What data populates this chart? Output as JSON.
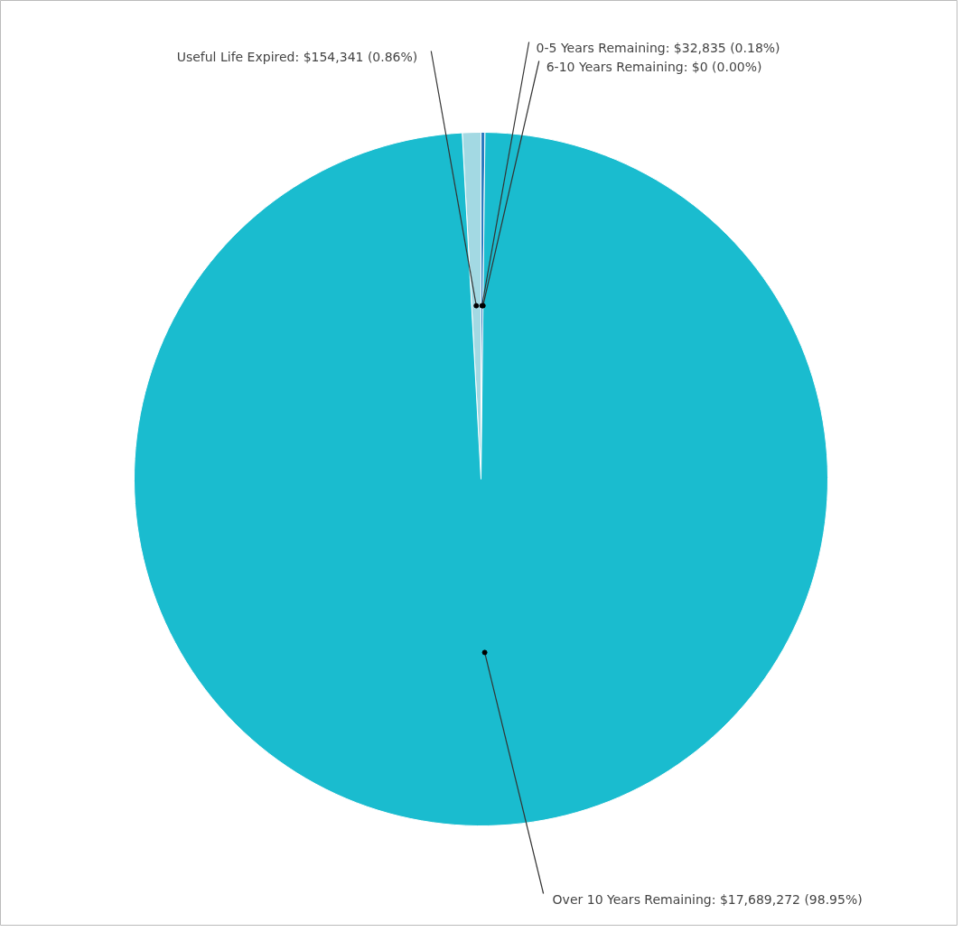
{
  "chart_data": {
    "type": "pie",
    "categories": [
      "Useful Life Expired: $154,341 (0.86%)",
      "0-5 Years Remaining: $32,835 (0.18%)",
      "6-10 Years Remaining: $0 (0.00%)",
      "Over 10 Years Remaining: $17,689,272 (98.95%)"
    ],
    "values": [
      154341,
      32835,
      0,
      17689272
    ],
    "colors": [
      "#a3d9e3",
      "#2b7bbf",
      "#1f4e8c",
      "#1abccf"
    ]
  }
}
